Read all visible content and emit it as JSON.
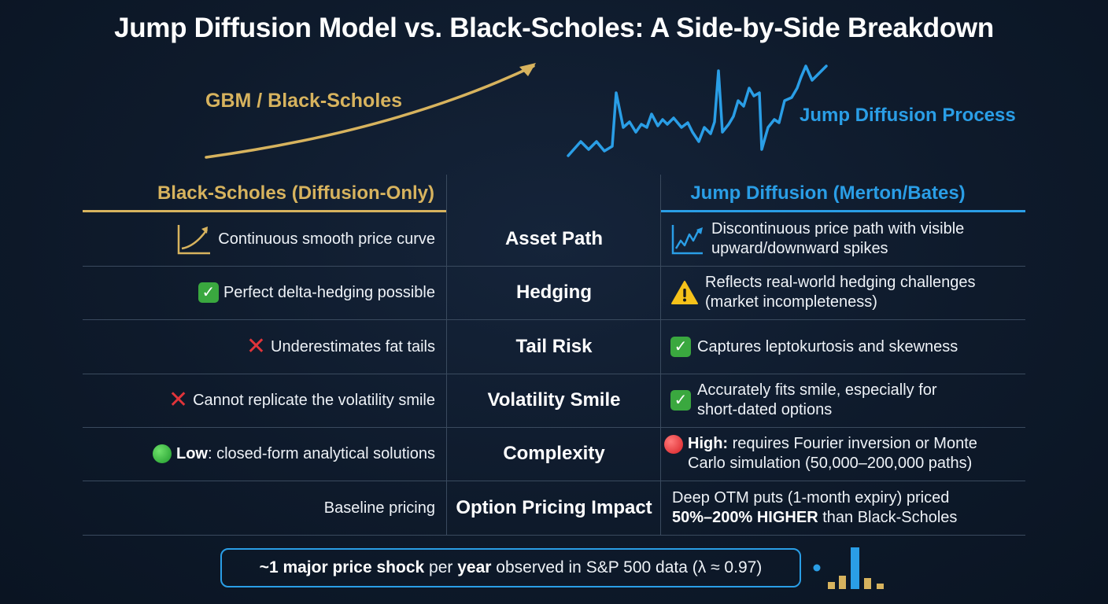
{
  "title": "Jump Diffusion Model vs. Black-Scholes: A Side-by-Side Breakdown",
  "hero": {
    "gbm_label": "GBM / Black-Scholes",
    "jump_label": "Jump Diffusion Process"
  },
  "columns": {
    "left_header": "Black-Scholes (Diffusion-Only)",
    "right_header": "Jump Diffusion (Merton/Bates)"
  },
  "rows": [
    {
      "label": "Asset Path",
      "left": {
        "icon": "smooth-curve-icon",
        "text": "Continuous smooth price curve"
      },
      "right": {
        "icon": "jagged-chart-icon",
        "line1": "Discontinuous price path with visible",
        "line2": "upward/downward spikes"
      }
    },
    {
      "label": "Hedging",
      "left": {
        "icon": "check-icon",
        "text": "Perfect delta-hedging possible"
      },
      "right": {
        "icon": "warning-icon",
        "line1": "Reflects real-world hedging challenges",
        "line2": "(market incompleteness)"
      }
    },
    {
      "label": "Tail Risk",
      "left": {
        "icon": "cross-icon",
        "text": "Underestimates fat tails"
      },
      "right": {
        "icon": "check-icon",
        "line1": "Captures leptokurtosis and skewness"
      }
    },
    {
      "label": "Volatility Smile",
      "left": {
        "icon": "cross-icon",
        "text": "Cannot replicate the volatility smile"
      },
      "right": {
        "icon": "check-icon",
        "line1": "Accurately fits smile, especially for",
        "line2": "short-dated options"
      }
    },
    {
      "label": "Complexity",
      "left": {
        "icon": "green-dot-icon",
        "bold": "Low",
        "text": ": closed-form analytical solutions"
      },
      "right": {
        "icon": "red-dot-icon",
        "bold": "High:",
        "line1": " requires Fourier inversion or Monte",
        "line2": "Carlo simulation (50,000–200,000 paths)"
      }
    },
    {
      "label": "Option Pricing Impact",
      "left": {
        "text": "Baseline pricing"
      },
      "right": {
        "line1": "Deep OTM puts (1-month expiry) priced",
        "bold": "50%–200% HIGHER",
        "line2": " than Black-Scholes"
      }
    }
  ],
  "footer": {
    "prefix": "~",
    "bold1": "1 major price shock",
    "mid1": " per ",
    "bold2": "year",
    "rest": " observed in S&P 500 data (λ ≈ 0.97)"
  },
  "colors": {
    "gold": "#d7b35e",
    "blue": "#2a9ee6",
    "background": "#0e1a2b",
    "grid": "#3a4a5e"
  }
}
